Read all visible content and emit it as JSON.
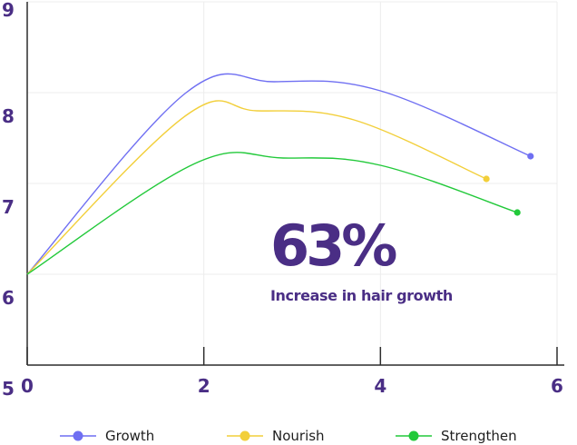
{
  "colors": {
    "text": "#4a2e85",
    "grid": "#ececec",
    "axis": "#2d2d2d",
    "legend_text": "#1e1e1e"
  },
  "stat": {
    "value": "63%",
    "caption": "Increase in hair growth"
  },
  "chart_data": {
    "type": "line",
    "title": "",
    "xlabel": "",
    "ylabel": "",
    "xlim": [
      0,
      6
    ],
    "ylim": [
      5,
      9
    ],
    "x_ticks": [
      "0",
      "2",
      "4",
      "6"
    ],
    "y_ticks": [
      "5",
      "6",
      "7",
      "8",
      "9"
    ],
    "grid": true,
    "legend_position": "bottom",
    "series": [
      {
        "name": "Growth",
        "color": "#6f6ff2",
        "points": [
          [
            0,
            6.0
          ],
          [
            1.8,
            8.0
          ],
          [
            2.8,
            8.12
          ],
          [
            4.0,
            8.02
          ],
          [
            5.7,
            7.3
          ]
        ]
      },
      {
        "name": "Nourish",
        "color": "#f2cf3a",
        "points": [
          [
            0,
            6.0
          ],
          [
            1.8,
            7.75
          ],
          [
            2.6,
            7.8
          ],
          [
            3.7,
            7.7
          ],
          [
            5.2,
            7.05
          ]
        ]
      },
      {
        "name": "Strengthen",
        "color": "#22c93a",
        "points": [
          [
            0,
            6.0
          ],
          [
            1.9,
            7.22
          ],
          [
            2.9,
            7.28
          ],
          [
            4.0,
            7.2
          ],
          [
            5.55,
            6.68
          ]
        ]
      }
    ]
  }
}
